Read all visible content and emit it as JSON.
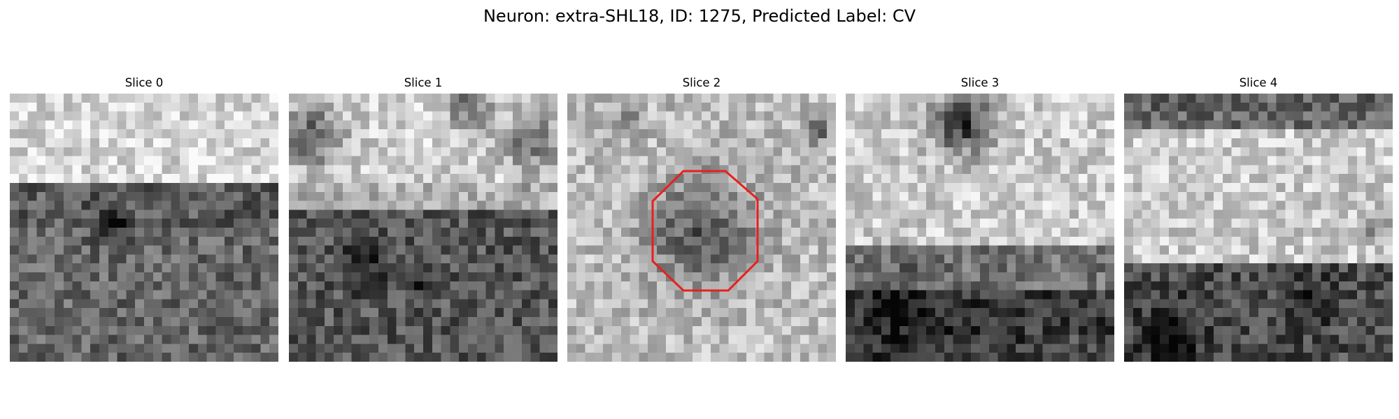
{
  "figure": {
    "title": "Neuron: extra-SHL18, ID: 1275, Predicted Label: CV"
  },
  "slices": [
    {
      "label": "Slice 0",
      "seed": 11,
      "bands": [
        [
          0.0,
          0.3,
          0.84
        ],
        [
          0.3,
          0.33,
          0.86
        ],
        [
          0.33,
          0.5,
          0.36
        ],
        [
          0.5,
          1.0,
          0.4
        ]
      ],
      "blobs": [
        [
          0.38,
          0.48,
          0.06,
          -0.3
        ]
      ],
      "roi": false
    },
    {
      "label": "Slice 1",
      "seed": 23,
      "bands": [
        [
          0.0,
          0.32,
          0.82
        ],
        [
          0.32,
          0.45,
          0.7
        ],
        [
          0.45,
          1.0,
          0.34
        ]
      ],
      "blobs": [
        [
          0.09,
          0.16,
          0.11,
          -0.45
        ],
        [
          0.67,
          0.05,
          0.08,
          -0.4
        ],
        [
          0.9,
          0.18,
          0.11,
          -0.35
        ],
        [
          0.27,
          0.65,
          0.08,
          -0.25
        ],
        [
          0.5,
          0.72,
          0.05,
          -0.25
        ]
      ],
      "roi": true,
      "roi_visible": false
    },
    {
      "label": "Slice 2",
      "seed": 37,
      "bands": [
        [
          0.0,
          1.0,
          0.74
        ]
      ],
      "blobs": [
        [
          0.5,
          0.52,
          0.2,
          -0.4
        ],
        [
          0.24,
          0.1,
          0.05,
          -0.25
        ],
        [
          0.93,
          0.13,
          0.06,
          -0.35
        ]
      ],
      "roi": true,
      "roi_visible": true
    },
    {
      "label": "Slice 3",
      "seed": 51,
      "bands": [
        [
          0.0,
          0.58,
          0.8
        ],
        [
          0.58,
          0.75,
          0.45
        ],
        [
          0.75,
          1.0,
          0.22
        ]
      ],
      "blobs": [
        [
          0.44,
          0.11,
          0.11,
          -0.6
        ],
        [
          0.22,
          0.8,
          0.15,
          -0.15
        ],
        [
          0.83,
          0.95,
          0.08,
          0.1
        ]
      ],
      "roi": false
    },
    {
      "label": "Slice 4",
      "seed": 67,
      "bands": [
        [
          0.0,
          0.14,
          0.4
        ],
        [
          0.14,
          0.62,
          0.8
        ],
        [
          0.62,
          1.0,
          0.3
        ]
      ],
      "blobs": [
        [
          0.18,
          0.9,
          0.14,
          -0.2
        ],
        [
          0.7,
          0.78,
          0.1,
          -0.15
        ],
        [
          0.95,
          0.5,
          0.06,
          -0.3
        ]
      ],
      "roi": false
    }
  ],
  "roi_shape": "octagon",
  "roi_color": "#e8201c",
  "grid_size": 30
}
